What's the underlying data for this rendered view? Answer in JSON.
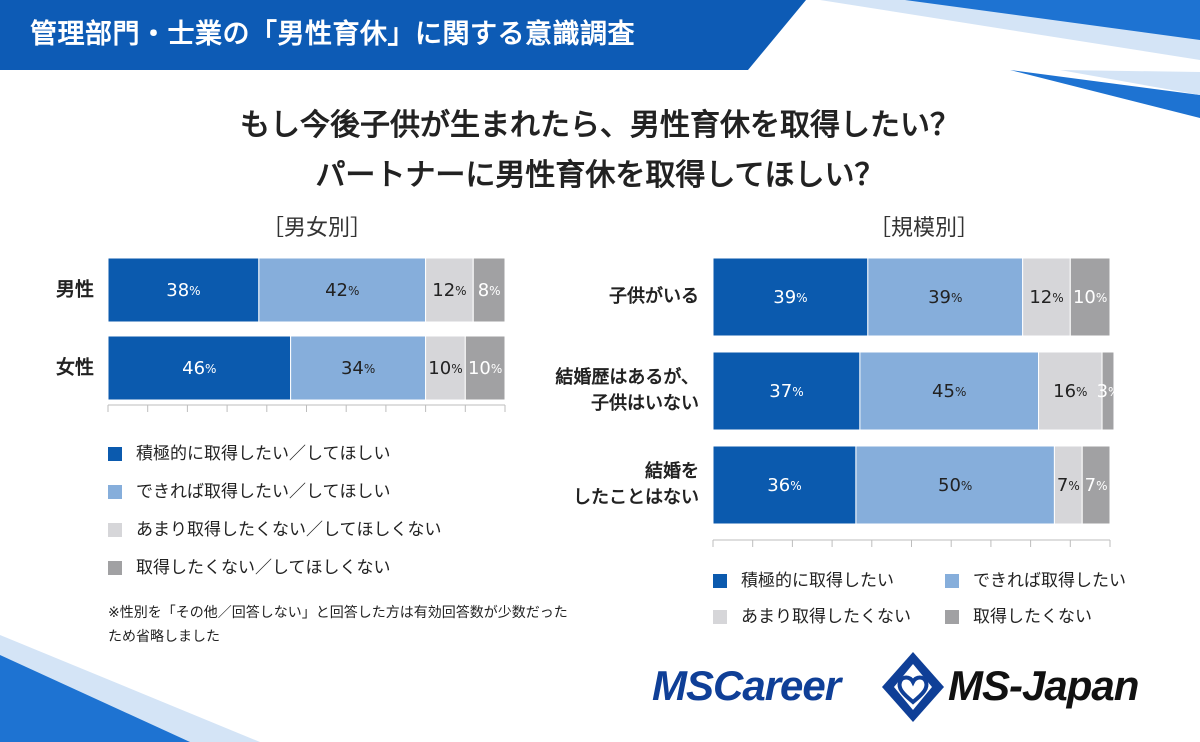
{
  "header": {
    "title": "管理部門・士業の「男性育休」に関する意識調査"
  },
  "headline": {
    "line1": "もし今後子供が生まれたら、男性育休を取得したい？",
    "line2": "パートナーに男性育休を取得してほしい？"
  },
  "colors": {
    "brand_blue": "#0d5bb5",
    "dark_blue": "#0b5aae",
    "light_blue": "#86aedb",
    "light_gray": "#d6d6d9",
    "dark_gray": "#a1a1a3"
  },
  "chart_data": [
    {
      "type": "bar",
      "orientation": "horizontal-stacked-100",
      "title": "［男女別］",
      "unit": "%",
      "categories": [
        "男性",
        "女性"
      ],
      "series": [
        {
          "name": "積極的に取得したい／してほしい",
          "values": [
            38,
            46
          ]
        },
        {
          "name": "できれば取得したい／してほしい",
          "values": [
            42,
            34
          ]
        },
        {
          "name": "あまり取得したくない／してほしくない",
          "values": [
            12,
            10
          ]
        },
        {
          "name": "取得したくない／してほしくない",
          "values": [
            8,
            10
          ]
        }
      ],
      "legend_position": "bottom",
      "note": "※性別を「その他／回答しない」と回答した方は有効回答数が少数だったため省略しました"
    },
    {
      "type": "bar",
      "orientation": "horizontal-stacked-100",
      "title": "［規模別］",
      "unit": "%",
      "categories": [
        "子供がいる",
        "結婚歴はあるが、子供はいない",
        "結婚をしたことはない"
      ],
      "category_lines": [
        [
          "子供がいる"
        ],
        [
          "結婚歴はあるが、",
          "子供はいない"
        ],
        [
          "結婚を",
          "したことはない"
        ]
      ],
      "series": [
        {
          "name": "積極的に取得したい",
          "values": [
            39,
            37,
            36
          ]
        },
        {
          "name": "できれば取得したい",
          "values": [
            39,
            45,
            50
          ]
        },
        {
          "name": "あまり取得したくない",
          "values": [
            12,
            16,
            7
          ]
        },
        {
          "name": "取得したくない",
          "values": [
            10,
            3,
            7
          ]
        }
      ],
      "legend_position": "bottom"
    }
  ],
  "logos": {
    "mscareer": "MSCareer",
    "msjapan": "MS-Japan"
  }
}
